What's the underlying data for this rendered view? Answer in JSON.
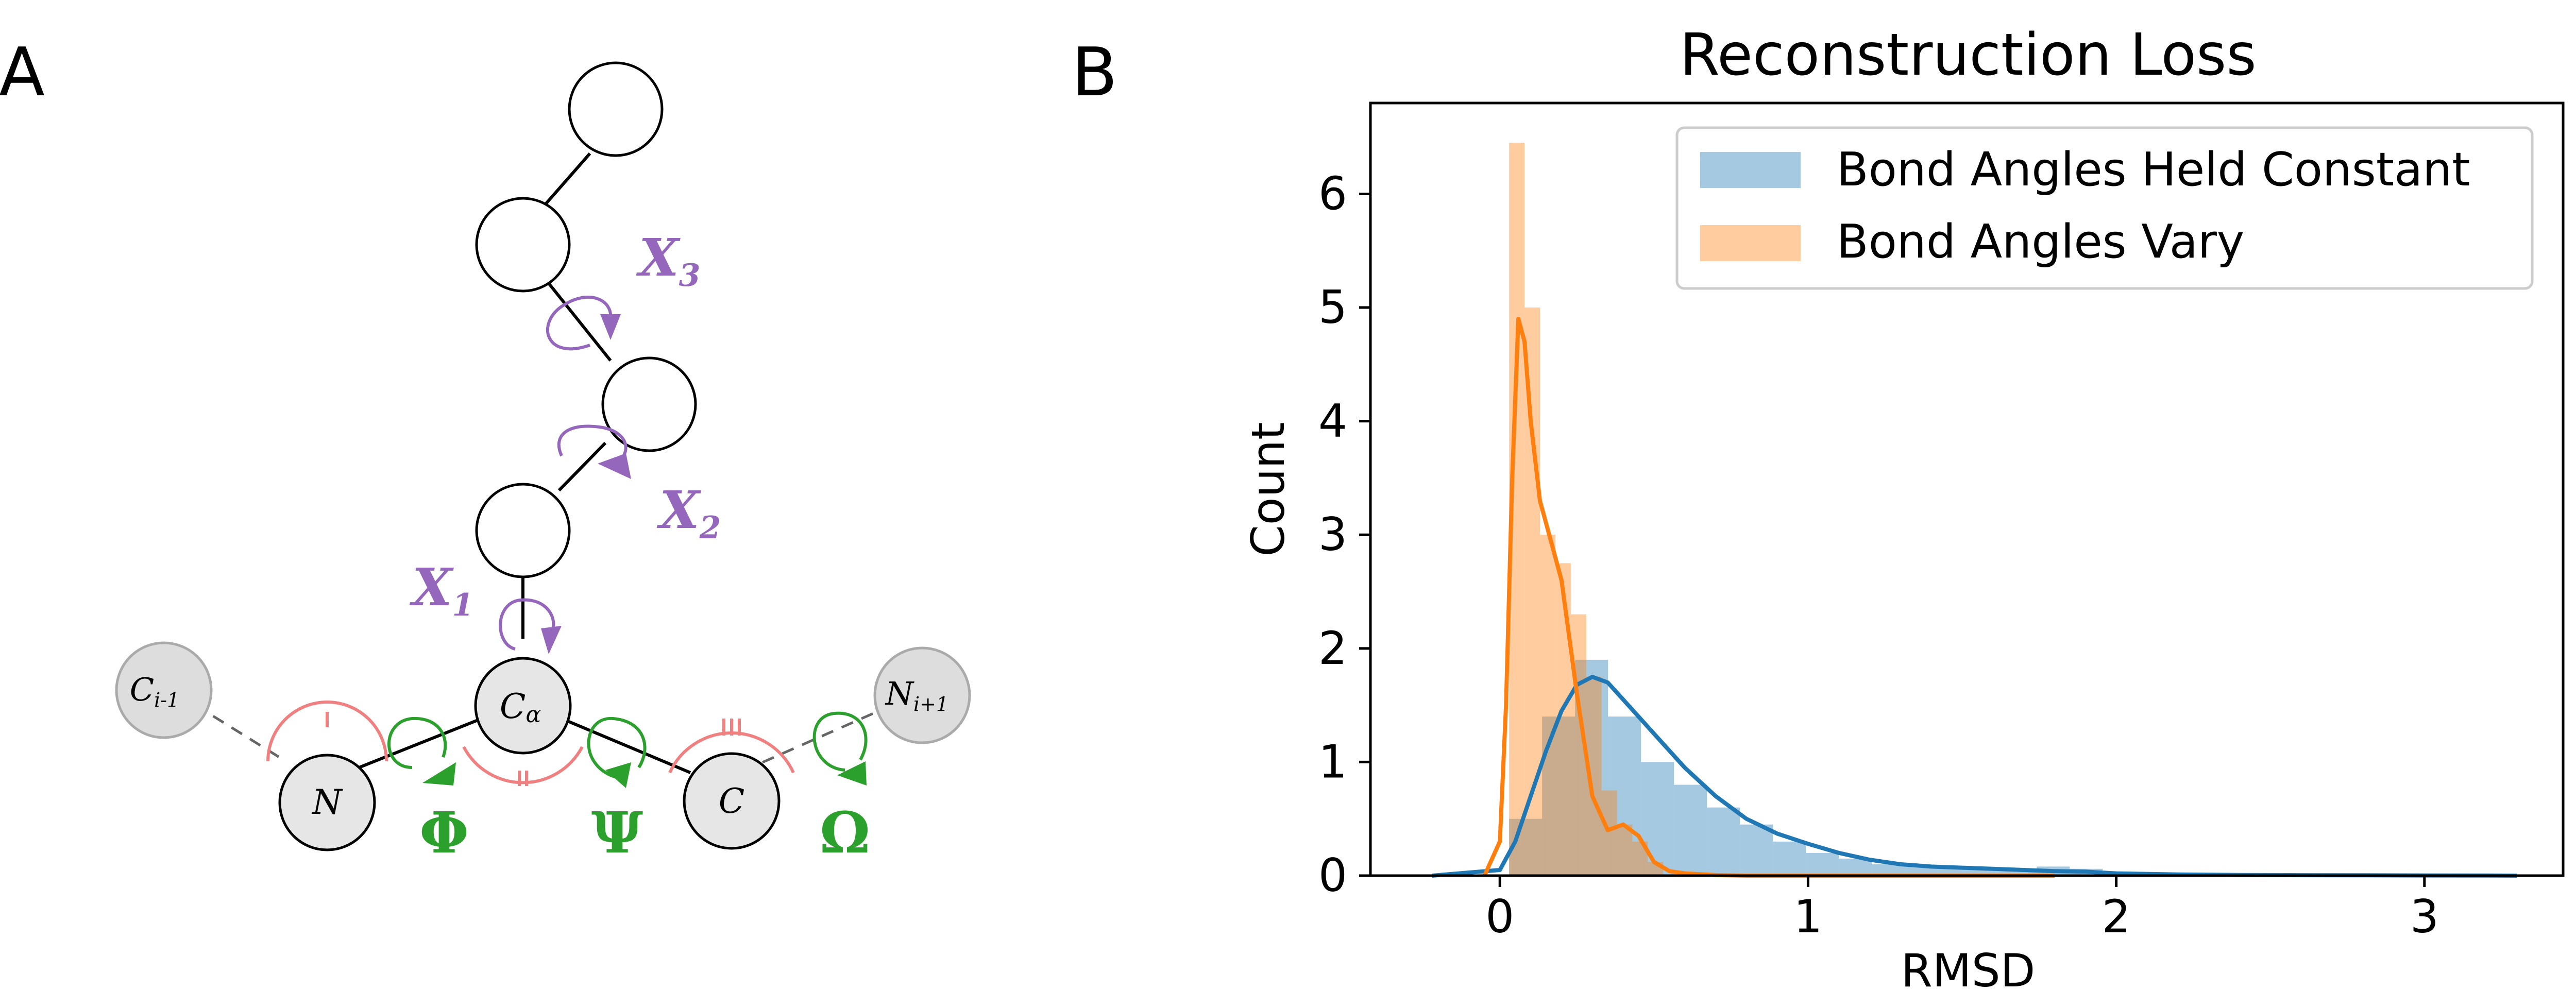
{
  "panel_a": {
    "label": "A",
    "atoms": {
      "c_prev": "C",
      "c_prev_sub": "i-1",
      "n": "N",
      "calpha": "C",
      "calpha_sub": "α",
      "c": "C",
      "n_next": "N",
      "n_next_sub": "i+1"
    },
    "torsions": {
      "phi": "Φ",
      "psi": "Ψ",
      "omega": "Ω",
      "chi1": "X",
      "chi1_sub": "1",
      "chi2": "X",
      "chi2_sub": "2",
      "chi3": "X",
      "chi3_sub": "3"
    },
    "colors": {
      "backbone_torsion": "#2ca02c",
      "sidechain_torsion": "#9467bd",
      "bond_angle": "#f08080",
      "atom_fill": "#e6e6e6",
      "ghost_atom_fill": "#dddddd"
    }
  },
  "panel_b": {
    "label": "B"
  },
  "chart_data": {
    "type": "histogram",
    "title": "Reconstruction Loss",
    "xlabel": "RMSD",
    "ylabel": "Count",
    "xlim": [
      -0.42,
      3.45
    ],
    "ylim": [
      0,
      6.8
    ],
    "xticks": [
      0,
      1,
      2,
      3
    ],
    "yticks": [
      0,
      1,
      2,
      3,
      4,
      5,
      6
    ],
    "legend_position": "top-right",
    "series": [
      {
        "name": "Bond Angles Held Constant",
        "color": "#1f77b4",
        "bin_width": 0.107,
        "bin_starts": [
          0.03,
          0.137,
          0.244,
          0.351,
          0.458,
          0.565,
          0.672,
          0.779,
          0.886,
          0.993,
          1.1,
          1.207,
          1.314,
          1.421,
          1.528,
          1.635,
          1.742,
          1.849,
          1.956,
          2.063,
          2.17,
          2.277,
          2.384,
          2.491,
          2.598,
          2.705,
          2.812,
          2.919,
          3.026
        ],
        "bin_heights": [
          0.5,
          1.4,
          1.9,
          1.4,
          1.0,
          0.8,
          0.6,
          0.45,
          0.3,
          0.2,
          0.15,
          0.1,
          0.08,
          0.06,
          0.05,
          0.04,
          0.08,
          0.06,
          0.03,
          0.02,
          0.02,
          0.01,
          0.01,
          0.01,
          0.01,
          0.01,
          0.01,
          0.01,
          0.01
        ],
        "kde_x": [
          -0.22,
          0.0,
          0.05,
          0.1,
          0.15,
          0.2,
          0.25,
          0.3,
          0.35,
          0.4,
          0.5,
          0.6,
          0.7,
          0.8,
          0.9,
          1.0,
          1.1,
          1.2,
          1.3,
          1.4,
          1.5,
          1.6,
          1.7,
          1.8,
          1.9,
          2.0,
          2.2,
          2.4,
          2.6,
          2.8,
          3.0,
          3.2,
          3.3
        ],
        "kde_y": [
          0.0,
          0.05,
          0.3,
          0.7,
          1.1,
          1.45,
          1.68,
          1.75,
          1.7,
          1.55,
          1.25,
          0.95,
          0.7,
          0.5,
          0.37,
          0.28,
          0.2,
          0.14,
          0.1,
          0.08,
          0.07,
          0.06,
          0.05,
          0.04,
          0.035,
          0.02,
          0.01,
          0.006,
          0.004,
          0.003,
          0.002,
          0.001,
          0.0
        ]
      },
      {
        "name": "Bond Angles Vary",
        "color": "#ff7f0e",
        "bin_width": 0.05,
        "bin_starts": [
          0.03,
          0.08,
          0.13,
          0.18,
          0.23,
          0.28,
          0.33,
          0.38,
          0.43,
          0.48
        ],
        "bin_heights": [
          6.45,
          5.0,
          3.0,
          2.75,
          2.3,
          1.75,
          0.75,
          0.45,
          0.3,
          0.12
        ],
        "kde_x": [
          -0.05,
          0.0,
          0.02,
          0.04,
          0.06,
          0.08,
          0.1,
          0.13,
          0.16,
          0.2,
          0.25,
          0.3,
          0.35,
          0.4,
          0.45,
          0.5,
          0.55,
          0.6,
          0.7,
          0.8,
          1.0,
          1.5,
          1.8
        ],
        "kde_y": [
          0.0,
          0.3,
          1.5,
          3.5,
          4.9,
          4.7,
          4.0,
          3.3,
          3.0,
          2.6,
          1.6,
          0.7,
          0.4,
          0.45,
          0.35,
          0.12,
          0.04,
          0.02,
          0.005,
          0.0,
          0.0,
          0.0,
          0.0
        ]
      }
    ]
  }
}
